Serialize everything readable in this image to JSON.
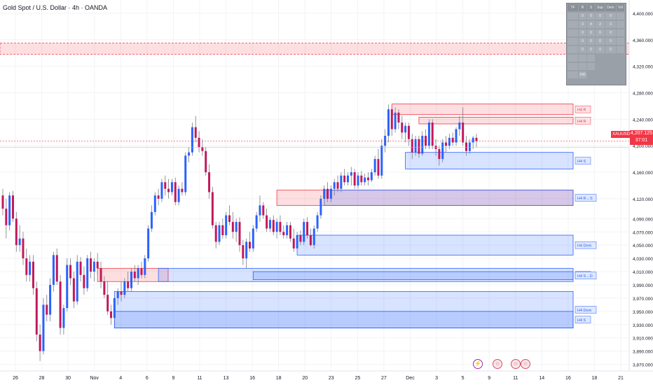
{
  "title": "Gold Spot / U.S. Dollar · 4h · OANDA",
  "current_price": {
    "symbol": "XAUUSD",
    "price": "4,207.125",
    "countdown": "37:01"
  },
  "colors": {
    "bull": "#2962ff",
    "bear": "#c2185b",
    "wick": "#787b86",
    "supply_fill": "rgba(242,54,69,0.16)",
    "supply_border": "#f23645",
    "demand_fill": "rgba(41,98,255,0.18)",
    "demand_border": "#2962ff"
  },
  "table": {
    "headers": [
      "TF",
      "R",
      "S",
      "Sup",
      "Dem",
      "Vol"
    ],
    "rows": [
      [
        "",
        "0",
        "0",
        "0",
        "0",
        ""
      ],
      [
        "",
        "3",
        "4",
        "2",
        "3",
        ""
      ],
      [
        "",
        "0",
        "0",
        "0",
        "0",
        ""
      ],
      [
        "",
        "0",
        "0",
        "0",
        "0",
        ""
      ],
      [
        "",
        "0",
        "0",
        "0",
        "0",
        ""
      ]
    ],
    "footer_rows": [
      [
        "",
        "",
        ""
      ],
      [
        "",
        "",
        ""
      ],
      [
        "",
        "240"
      ]
    ]
  },
  "events": [
    {
      "type": "lightning",
      "icon": "⚡"
    },
    {
      "type": "flag",
      "icon": "☆"
    },
    {
      "type": "flag",
      "icon": "☆"
    },
    {
      "type": "flag",
      "icon": "☆"
    }
  ],
  "chart_data": {
    "type": "candlestick",
    "title": "Gold Spot / U.S. Dollar · 4h · OANDA",
    "ylim": [
      3860,
      4420
    ],
    "y_ticks": [
      "4,400.000",
      "4,360.000",
      "4,320.000",
      "4,280.000",
      "4,240.000",
      "4,200.000",
      "4,160.000",
      "4,120.000",
      "4,090.000",
      "4,070.000",
      "4,050.000",
      "4,030.000",
      "4,010.000",
      "3,990.000",
      "3,970.000",
      "3,950.000",
      "3,930.000",
      "3,910.000",
      "3,890.000",
      "3,870.000"
    ],
    "x_ticks": [
      "26",
      "28",
      "30",
      "Nov",
      "4",
      "6",
      "9",
      "11",
      "13",
      "16",
      "18",
      "20",
      "23",
      "25",
      "27",
      "Dec",
      "3",
      "5",
      "9",
      "11",
      "14",
      "16",
      "18",
      "21"
    ],
    "last_price": 4207.125,
    "candles": [
      {
        "o": 4125,
        "h": 4135,
        "l": 4095,
        "c": 4105
      },
      {
        "o": 4105,
        "h": 4120,
        "l": 4060,
        "c": 4080
      },
      {
        "o": 4080,
        "h": 4130,
        "l": 4072,
        "c": 4125
      },
      {
        "o": 4125,
        "h": 4132,
        "l": 4085,
        "c": 4090
      },
      {
        "o": 4090,
        "h": 4100,
        "l": 4040,
        "c": 4050
      },
      {
        "o": 4050,
        "h": 4080,
        "l": 4040,
        "c": 4060
      },
      {
        "o": 4060,
        "h": 4070,
        "l": 4020,
        "c": 4030
      },
      {
        "o": 4030,
        "h": 4045,
        "l": 3995,
        "c": 4005
      },
      {
        "o": 4005,
        "h": 4035,
        "l": 3995,
        "c": 4025
      },
      {
        "o": 4025,
        "h": 4035,
        "l": 3975,
        "c": 3985
      },
      {
        "o": 3985,
        "h": 3995,
        "l": 3905,
        "c": 3915
      },
      {
        "o": 3915,
        "h": 3930,
        "l": 3875,
        "c": 3890
      },
      {
        "o": 3890,
        "h": 3970,
        "l": 3885,
        "c": 3960
      },
      {
        "o": 3960,
        "h": 3975,
        "l": 3935,
        "c": 3945
      },
      {
        "o": 3945,
        "h": 4000,
        "l": 3935,
        "c": 3990
      },
      {
        "o": 3990,
        "h": 4040,
        "l": 3980,
        "c": 4035
      },
      {
        "o": 4035,
        "h": 4045,
        "l": 3990,
        "c": 3995
      },
      {
        "o": 3995,
        "h": 4005,
        "l": 3915,
        "c": 3925
      },
      {
        "o": 3925,
        "h": 3960,
        "l": 3915,
        "c": 3955
      },
      {
        "o": 3955,
        "h": 4030,
        "l": 3950,
        "c": 4020
      },
      {
        "o": 4020,
        "h": 4030,
        "l": 3990,
        "c": 4000
      },
      {
        "o": 4000,
        "h": 4010,
        "l": 3955,
        "c": 3965
      },
      {
        "o": 3965,
        "h": 4035,
        "l": 3960,
        "c": 4025
      },
      {
        "o": 4025,
        "h": 4032,
        "l": 3995,
        "c": 4005
      },
      {
        "o": 4005,
        "h": 4018,
        "l": 3975,
        "c": 3985
      },
      {
        "o": 3985,
        "h": 4035,
        "l": 3980,
        "c": 4030
      },
      {
        "o": 4030,
        "h": 4040,
        "l": 4000,
        "c": 4010
      },
      {
        "o": 4010,
        "h": 4030,
        "l": 3995,
        "c": 4025
      },
      {
        "o": 4025,
        "h": 4038,
        "l": 4005,
        "c": 4015
      },
      {
        "o": 4015,
        "h": 4025,
        "l": 3985,
        "c": 3995
      },
      {
        "o": 3995,
        "h": 4003,
        "l": 3970,
        "c": 3975
      },
      {
        "o": 3975,
        "h": 3995,
        "l": 3945,
        "c": 3950
      },
      {
        "o": 3950,
        "h": 3960,
        "l": 3930,
        "c": 3940
      },
      {
        "o": 3940,
        "h": 3975,
        "l": 3935,
        "c": 3970
      },
      {
        "o": 3970,
        "h": 3985,
        "l": 3960,
        "c": 3980
      },
      {
        "o": 3980,
        "h": 3995,
        "l": 3965,
        "c": 3975
      },
      {
        "o": 3975,
        "h": 4000,
        "l": 3970,
        "c": 3995
      },
      {
        "o": 3995,
        "h": 4010,
        "l": 3980,
        "c": 3985
      },
      {
        "o": 3985,
        "h": 4015,
        "l": 3980,
        "c": 4010
      },
      {
        "o": 4010,
        "h": 4020,
        "l": 3995,
        "c": 4000
      },
      {
        "o": 4000,
        "h": 4020,
        "l": 3990,
        "c": 4015
      },
      {
        "o": 4015,
        "h": 4025,
        "l": 4000,
        "c": 4005
      },
      {
        "o": 4005,
        "h": 4035,
        "l": 4000,
        "c": 4030
      },
      {
        "o": 4030,
        "h": 4080,
        "l": 4025,
        "c": 4075
      },
      {
        "o": 4075,
        "h": 4110,
        "l": 4070,
        "c": 4100
      },
      {
        "o": 4100,
        "h": 4130,
        "l": 4095,
        "c": 4125
      },
      {
        "o": 4125,
        "h": 4135,
        "l": 4110,
        "c": 4120
      },
      {
        "o": 4120,
        "h": 4150,
        "l": 4115,
        "c": 4145
      },
      {
        "o": 4145,
        "h": 4155,
        "l": 4125,
        "c": 4135
      },
      {
        "o": 4135,
        "h": 4150,
        "l": 4120,
        "c": 4130
      },
      {
        "o": 4130,
        "h": 4150,
        "l": 4125,
        "c": 4145
      },
      {
        "o": 4145,
        "h": 4152,
        "l": 4110,
        "c": 4115
      },
      {
        "o": 4115,
        "h": 4140,
        "l": 4110,
        "c": 4135
      },
      {
        "o": 4135,
        "h": 4145,
        "l": 4125,
        "c": 4130
      },
      {
        "o": 4130,
        "h": 4190,
        "l": 4125,
        "c": 4185
      },
      {
        "o": 4185,
        "h": 4198,
        "l": 4175,
        "c": 4190
      },
      {
        "o": 4190,
        "h": 4235,
        "l": 4185,
        "c": 4228
      },
      {
        "o": 4228,
        "h": 4245,
        "l": 4205,
        "c": 4212
      },
      {
        "o": 4212,
        "h": 4222,
        "l": 4190,
        "c": 4198
      },
      {
        "o": 4198,
        "h": 4210,
        "l": 4185,
        "c": 4192
      },
      {
        "o": 4192,
        "h": 4198,
        "l": 4155,
        "c": 4160
      },
      {
        "o": 4160,
        "h": 4172,
        "l": 4120,
        "c": 4130
      },
      {
        "o": 4130,
        "h": 4138,
        "l": 4075,
        "c": 4080
      },
      {
        "o": 4080,
        "h": 4085,
        "l": 4045,
        "c": 4055
      },
      {
        "o": 4055,
        "h": 4085,
        "l": 4050,
        "c": 4080
      },
      {
        "o": 4080,
        "h": 4090,
        "l": 4060,
        "c": 4065
      },
      {
        "o": 4065,
        "h": 4100,
        "l": 4060,
        "c": 4095
      },
      {
        "o": 4095,
        "h": 4110,
        "l": 4080,
        "c": 4085
      },
      {
        "o": 4085,
        "h": 4100,
        "l": 4060,
        "c": 4070
      },
      {
        "o": 4070,
        "h": 4090,
        "l": 4055,
        "c": 4085
      },
      {
        "o": 4085,
        "h": 4092,
        "l": 4040,
        "c": 4050
      },
      {
        "o": 4050,
        "h": 4058,
        "l": 4020,
        "c": 4030
      },
      {
        "o": 4030,
        "h": 4060,
        "l": 4015,
        "c": 4055
      },
      {
        "o": 4055,
        "h": 4070,
        "l": 4040,
        "c": 4045
      },
      {
        "o": 4045,
        "h": 4080,
        "l": 4040,
        "c": 4075
      },
      {
        "o": 4075,
        "h": 4100,
        "l": 4070,
        "c": 4095
      },
      {
        "o": 4095,
        "h": 4125,
        "l": 4085,
        "c": 4110
      },
      {
        "o": 4110,
        "h": 4115,
        "l": 4090,
        "c": 4095
      },
      {
        "o": 4095,
        "h": 4105,
        "l": 4070,
        "c": 4075
      },
      {
        "o": 4075,
        "h": 4092,
        "l": 4070,
        "c": 4088
      },
      {
        "o": 4088,
        "h": 4095,
        "l": 4065,
        "c": 4070
      },
      {
        "o": 4070,
        "h": 4090,
        "l": 4060,
        "c": 4085
      },
      {
        "o": 4085,
        "h": 4095,
        "l": 4065,
        "c": 4070
      },
      {
        "o": 4070,
        "h": 4080,
        "l": 4060,
        "c": 4065
      },
      {
        "o": 4065,
        "h": 4085,
        "l": 4060,
        "c": 4080
      },
      {
        "o": 4080,
        "h": 4085,
        "l": 4055,
        "c": 4060
      },
      {
        "o": 4060,
        "h": 4075,
        "l": 4040,
        "c": 4045
      },
      {
        "o": 4045,
        "h": 4070,
        "l": 4040,
        "c": 4065
      },
      {
        "o": 4065,
        "h": 4072,
        "l": 4050,
        "c": 4055
      },
      {
        "o": 4055,
        "h": 4090,
        "l": 4050,
        "c": 4085
      },
      {
        "o": 4085,
        "h": 4092,
        "l": 4060,
        "c": 4065
      },
      {
        "o": 4065,
        "h": 4075,
        "l": 4048,
        "c": 4050
      },
      {
        "o": 4050,
        "h": 4080,
        "l": 4045,
        "c": 4075
      },
      {
        "o": 4075,
        "h": 4100,
        "l": 4070,
        "c": 4095
      },
      {
        "o": 4095,
        "h": 4125,
        "l": 4090,
        "c": 4120
      },
      {
        "o": 4120,
        "h": 4140,
        "l": 4110,
        "c": 4135
      },
      {
        "o": 4135,
        "h": 4145,
        "l": 4115,
        "c": 4120
      },
      {
        "o": 4120,
        "h": 4140,
        "l": 4115,
        "c": 4135
      },
      {
        "o": 4135,
        "h": 4150,
        "l": 4125,
        "c": 4145
      },
      {
        "o": 4145,
        "h": 4155,
        "l": 4130,
        "c": 4135
      },
      {
        "o": 4135,
        "h": 4160,
        "l": 4130,
        "c": 4155
      },
      {
        "o": 4155,
        "h": 4165,
        "l": 4140,
        "c": 4145
      },
      {
        "o": 4145,
        "h": 4160,
        "l": 4140,
        "c": 4155
      },
      {
        "o": 4155,
        "h": 4168,
        "l": 4140,
        "c": 4160
      },
      {
        "o": 4160,
        "h": 4165,
        "l": 4135,
        "c": 4140
      },
      {
        "o": 4140,
        "h": 4160,
        "l": 4135,
        "c": 4155
      },
      {
        "o": 4155,
        "h": 4162,
        "l": 4140,
        "c": 4145
      },
      {
        "o": 4145,
        "h": 4158,
        "l": 4140,
        "c": 4152
      },
      {
        "o": 4152,
        "h": 4160,
        "l": 4140,
        "c": 4148
      },
      {
        "o": 4148,
        "h": 4165,
        "l": 4145,
        "c": 4160
      },
      {
        "o": 4160,
        "h": 4185,
        "l": 4155,
        "c": 4180
      },
      {
        "o": 4180,
        "h": 4195,
        "l": 4150,
        "c": 4155
      },
      {
        "o": 4155,
        "h": 4210,
        "l": 4150,
        "c": 4200
      },
      {
        "o": 4200,
        "h": 4225,
        "l": 4190,
        "c": 4215
      },
      {
        "o": 4215,
        "h": 4262,
        "l": 4205,
        "c": 4255
      },
      {
        "o": 4255,
        "h": 4260,
        "l": 4215,
        "c": 4225
      },
      {
        "o": 4225,
        "h": 4258,
        "l": 4220,
        "c": 4250
      },
      {
        "o": 4250,
        "h": 4255,
        "l": 4225,
        "c": 4235
      },
      {
        "o": 4235,
        "h": 4245,
        "l": 4210,
        "c": 4220
      },
      {
        "o": 4220,
        "h": 4235,
        "l": 4205,
        "c": 4230
      },
      {
        "o": 4230,
        "h": 4235,
        "l": 4200,
        "c": 4210
      },
      {
        "o": 4210,
        "h": 4218,
        "l": 4180,
        "c": 4190
      },
      {
        "o": 4190,
        "h": 4215,
        "l": 4185,
        "c": 4210
      },
      {
        "o": 4210,
        "h": 4215,
        "l": 4182,
        "c": 4188
      },
      {
        "o": 4188,
        "h": 4222,
        "l": 4185,
        "c": 4215
      },
      {
        "o": 4215,
        "h": 4225,
        "l": 4195,
        "c": 4200
      },
      {
        "o": 4200,
        "h": 4240,
        "l": 4195,
        "c": 4235
      },
      {
        "o": 4235,
        "h": 4240,
        "l": 4195,
        "c": 4200
      },
      {
        "o": 4200,
        "h": 4210,
        "l": 4185,
        "c": 4195
      },
      {
        "o": 4195,
        "h": 4200,
        "l": 4170,
        "c": 4180
      },
      {
        "o": 4180,
        "h": 4210,
        "l": 4175,
        "c": 4205
      },
      {
        "o": 4205,
        "h": 4215,
        "l": 4190,
        "c": 4200
      },
      {
        "o": 4200,
        "h": 4218,
        "l": 4195,
        "c": 4212
      },
      {
        "o": 4212,
        "h": 4220,
        "l": 4200,
        "c": 4205
      },
      {
        "o": 4205,
        "h": 4228,
        "l": 4200,
        "c": 4225
      },
      {
        "o": 4225,
        "h": 4245,
        "l": 4215,
        "c": 4235
      },
      {
        "o": 4235,
        "h": 4258,
        "l": 4200,
        "c": 4205
      },
      {
        "o": 4205,
        "h": 4215,
        "l": 4185,
        "c": 4192
      },
      {
        "o": 4192,
        "h": 4210,
        "l": 4188,
        "c": 4205
      },
      {
        "o": 4205,
        "h": 4215,
        "l": 4195,
        "c": 4212
      },
      {
        "o": 4212,
        "h": 4218,
        "l": 4198,
        "c": 4207
      }
    ],
    "zones": [
      {
        "kind": "supply",
        "top": 4355,
        "bottom": 4338,
        "label": ""
      },
      {
        "kind": "supply",
        "top": 4263,
        "bottom": 4247,
        "label": "H4 R"
      },
      {
        "kind": "supply",
        "top": 4243,
        "bottom": 4233,
        "label": "H4 R"
      },
      {
        "kind": "demand",
        "top": 4190,
        "bottom": 4165,
        "label": "H4 S"
      },
      {
        "kind": "supply",
        "top": 4133,
        "bottom": 4110,
        "label": ""
      },
      {
        "kind": "demand",
        "top": 4133,
        "bottom": 4110,
        "label": "H4 R→S"
      },
      {
        "kind": "demand",
        "top": 4065,
        "bottom": 4035,
        "label": "H4 Dem"
      },
      {
        "kind": "supply",
        "top": 4015,
        "bottom": 3995,
        "label": ""
      },
      {
        "kind": "demand",
        "top": 4015,
        "bottom": 3995,
        "label": "H4 S"
      },
      {
        "kind": "demand",
        "top": 4010,
        "bottom": 3998,
        "label": "H4 S→D"
      },
      {
        "kind": "demand",
        "top": 3980,
        "bottom": 3925,
        "label": "H4 Dem"
      },
      {
        "kind": "demand",
        "top": 3950,
        "bottom": 3925,
        "label": "H4 S"
      }
    ]
  }
}
